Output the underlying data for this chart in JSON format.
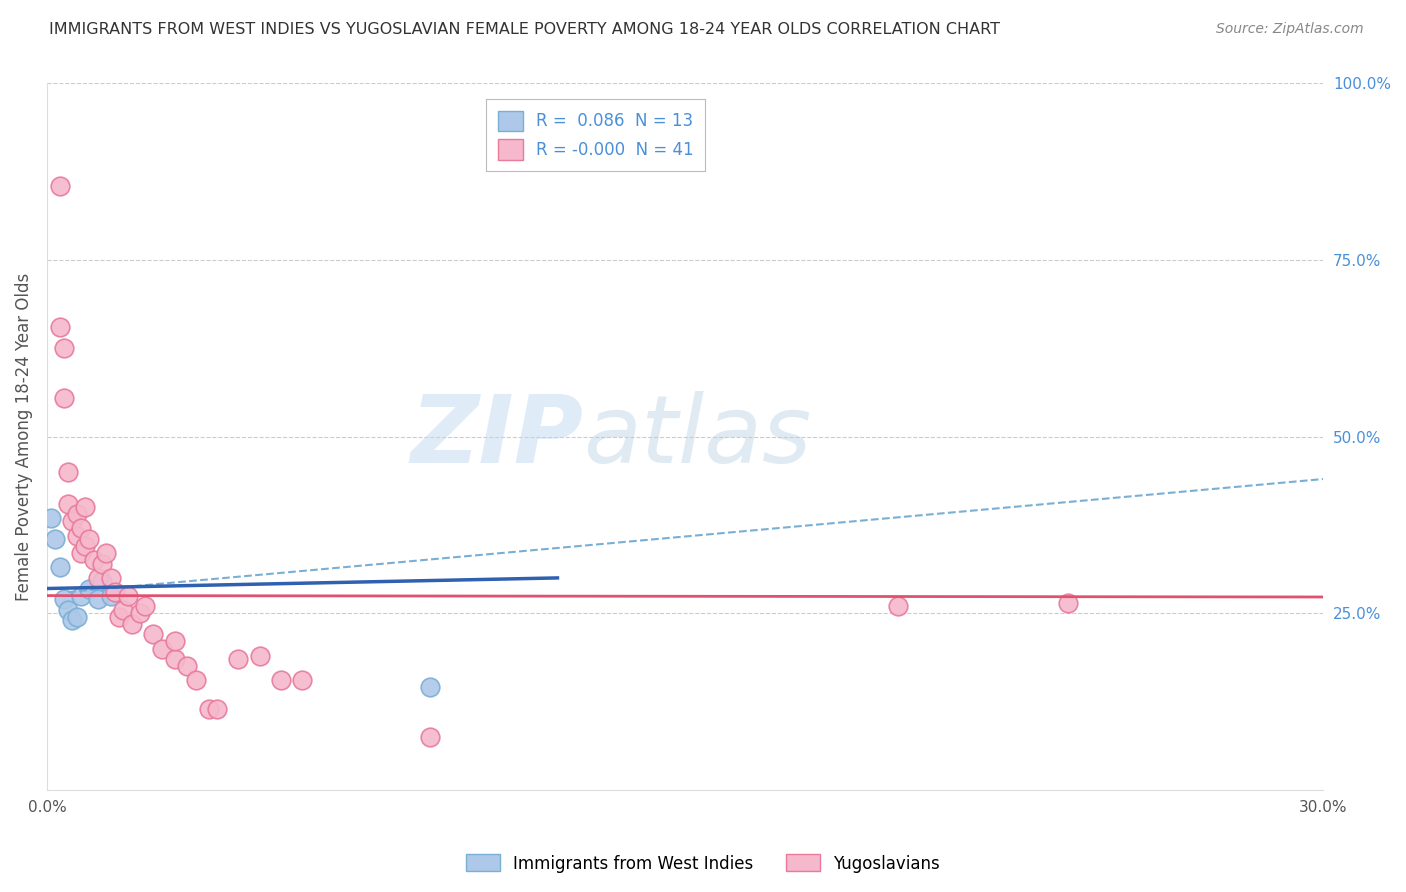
{
  "title": "IMMIGRANTS FROM WEST INDIES VS YUGOSLAVIAN FEMALE POVERTY AMONG 18-24 YEAR OLDS CORRELATION CHART",
  "source": "Source: ZipAtlas.com",
  "ylabel": "Female Poverty Among 18-24 Year Olds",
  "xlim": [
    0.0,
    0.3
  ],
  "ylim": [
    0.0,
    1.0
  ],
  "xticks": [
    0.0,
    0.05,
    0.1,
    0.15,
    0.2,
    0.25,
    0.3
  ],
  "xticklabels": [
    "0.0%",
    "",
    "",
    "",
    "",
    "",
    "30.0%"
  ],
  "yticks_right": [
    0.0,
    0.25,
    0.5,
    0.75,
    1.0
  ],
  "ytick_right_labels": [
    "",
    "25.0%",
    "50.0%",
    "75.0%",
    "100.0%"
  ],
  "R_blue": 0.086,
  "N_blue": 13,
  "R_pink": -0.0,
  "N_pink": 41,
  "legend_label_blue": "Immigrants from West Indies",
  "legend_label_pink": "Yugoslavians",
  "blue_scatter_x": [
    0.001,
    0.002,
    0.003,
    0.004,
    0.005,
    0.006,
    0.007,
    0.008,
    0.01,
    0.012,
    0.013,
    0.015,
    0.09
  ],
  "blue_scatter_y": [
    0.385,
    0.355,
    0.315,
    0.27,
    0.255,
    0.24,
    0.245,
    0.275,
    0.285,
    0.27,
    0.295,
    0.275,
    0.145
  ],
  "pink_scatter_x": [
    0.003,
    0.003,
    0.004,
    0.004,
    0.005,
    0.005,
    0.006,
    0.007,
    0.007,
    0.008,
    0.008,
    0.009,
    0.009,
    0.01,
    0.011,
    0.012,
    0.013,
    0.014,
    0.015,
    0.016,
    0.017,
    0.018,
    0.019,
    0.02,
    0.022,
    0.023,
    0.025,
    0.027,
    0.03,
    0.03,
    0.033,
    0.035,
    0.038,
    0.04,
    0.045,
    0.05,
    0.055,
    0.06,
    0.09,
    0.2,
    0.24
  ],
  "pink_scatter_y": [
    0.855,
    0.655,
    0.625,
    0.555,
    0.45,
    0.405,
    0.38,
    0.36,
    0.39,
    0.335,
    0.37,
    0.345,
    0.4,
    0.355,
    0.325,
    0.3,
    0.32,
    0.335,
    0.3,
    0.28,
    0.245,
    0.255,
    0.275,
    0.235,
    0.25,
    0.26,
    0.22,
    0.2,
    0.185,
    0.21,
    0.175,
    0.155,
    0.115,
    0.115,
    0.185,
    0.19,
    0.155,
    0.155,
    0.075,
    0.26,
    0.265
  ],
  "blue_line_x": [
    0.0,
    0.12
  ],
  "blue_line_y": [
    0.285,
    0.3
  ],
  "blue_dash_line_x": [
    0.005,
    0.3
  ],
  "blue_dash_line_y": [
    0.28,
    0.44
  ],
  "pink_line_x": [
    0.0,
    0.3
  ],
  "pink_line_y": [
    0.275,
    0.273
  ],
  "watermark_zip": "ZIP",
  "watermark_atlas": "atlas",
  "blue_color": "#adc8e8",
  "pink_color": "#f5b8cc",
  "blue_edge": "#7aafd4",
  "pink_edge": "#e87a9a",
  "blue_line_color": "#3060b0",
  "blue_dash_color": "#7aafd4",
  "pink_line_color": "#e05070",
  "title_color": "#333333",
  "axis_label_color": "#555555",
  "tick_color_right": "#4a90d9",
  "grid_color": "#cccccc",
  "background_color": "#ffffff"
}
